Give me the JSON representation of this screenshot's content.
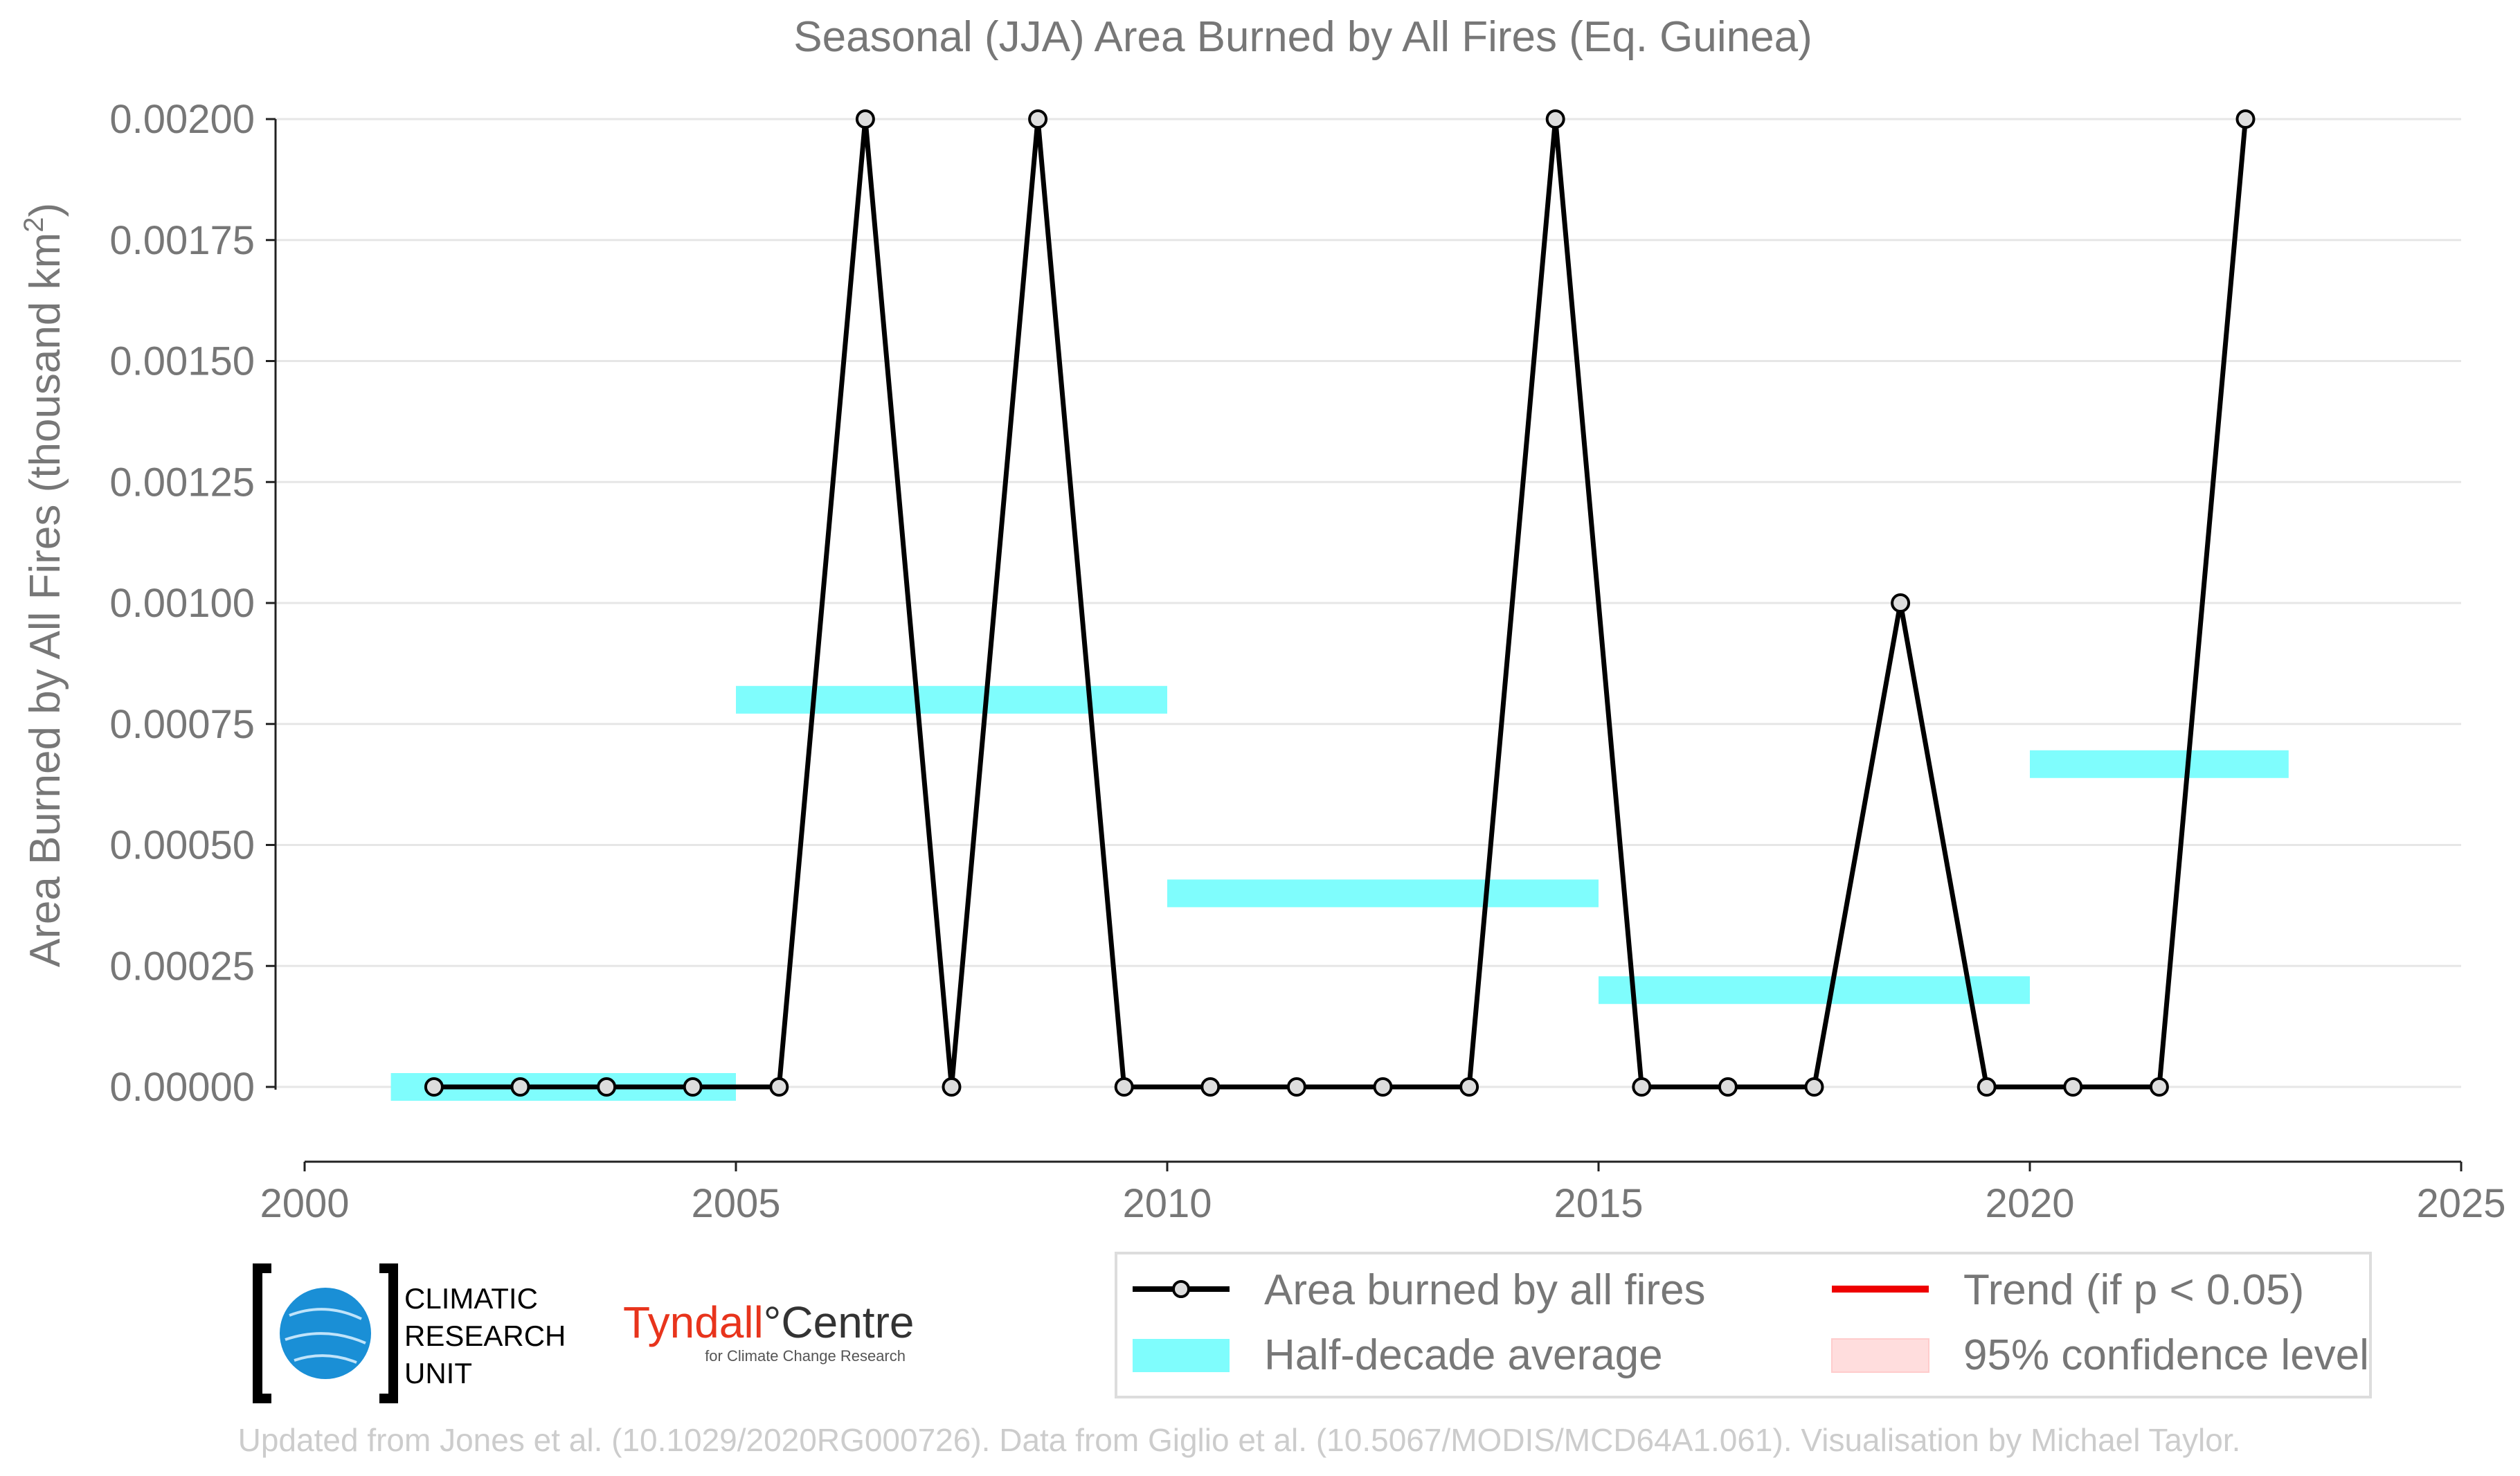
{
  "chart_data": {
    "type": "line",
    "title": "Seasonal (JJA) Area Burned by All Fires (Eq. Guinea)",
    "ylabel": "Area Burned by All Fires (thousand km",
    "ylabel_sup": "2",
    "ylabel_end": ")",
    "xlim": [
      2000,
      2025
    ],
    "ylim": [
      -0.00015,
      0.00205
    ],
    "x_ticks": [
      2000,
      2005,
      2010,
      2015,
      2020,
      2025
    ],
    "x_tick_labels": [
      "2000",
      "2005",
      "2010",
      "2015",
      "2020",
      "2025"
    ],
    "y_ticks": [
      0,
      0.00025,
      0.0005,
      0.00075,
      0.001,
      0.00125,
      0.0015,
      0.00175,
      0.002
    ],
    "y_tick_labels": [
      "0.00000",
      "0.00025",
      "0.00050",
      "0.00075",
      "0.00100",
      "0.00125",
      "0.00150",
      "0.00175",
      "0.00200"
    ],
    "grid": "horizontal",
    "series": [
      {
        "name": "Area burned by all fires",
        "color": "#000000",
        "x": [
          2001.5,
          2002.5,
          2003.5,
          2004.5,
          2005.5,
          2006.5,
          2007.5,
          2008.5,
          2009.5,
          2010.5,
          2011.5,
          2012.5,
          2013.5,
          2014.5,
          2015.5,
          2016.5,
          2017.5,
          2018.5,
          2019.5,
          2020.5,
          2021.5,
          2022.5
        ],
        "values": [
          0,
          0,
          0,
          0,
          0,
          0.002,
          0,
          0.002,
          0,
          0,
          0,
          0,
          0,
          0.002,
          0,
          0,
          0,
          0.001,
          0,
          0,
          0,
          0.002
        ]
      }
    ],
    "half_decade_average": {
      "name": "Half-decade average",
      "color": "#7ffdfd",
      "segments": [
        {
          "x_start": 2001,
          "x_end": 2005,
          "value": 0
        },
        {
          "x_start": 2005,
          "x_end": 2010,
          "value": 0.0008
        },
        {
          "x_start": 2010,
          "x_end": 2015,
          "value": 0.0004
        },
        {
          "x_start": 2015,
          "x_end": 2020,
          "value": 0.0002
        },
        {
          "x_start": 2020,
          "x_end": 2023,
          "value": 0.000667
        }
      ]
    },
    "legend": {
      "placement": "bottom-right",
      "entries": [
        {
          "label": "Area burned by all fires",
          "kind": "line-marker",
          "color": "#000000"
        },
        {
          "label": "Trend (if p < 0.05)",
          "kind": "line",
          "color": "#ee0000"
        },
        {
          "label": "Half-decade average",
          "kind": "band",
          "color": "#7ffdfd"
        },
        {
          "label": "95% confidence level",
          "kind": "band",
          "color": "#ffdddd"
        }
      ]
    }
  },
  "logos": {
    "cru_text": [
      "CLIMATIC",
      "RESEARCH",
      "UNIT"
    ],
    "cru_color": "#1a8fd6",
    "tyndall_name": "Tyndall",
    "tyndall_degree": "°",
    "tyndall_centre": "Centre",
    "tyndall_sub": "for Climate Change Research",
    "tyndall_color": "#e8341c"
  },
  "footer": {
    "credit": "Updated from Jones et al. (10.1029/2020RG000726). Data from Giglio et al. (10.5067/MODIS/MCD64A1.061). Visualisation by Michael Taylor."
  }
}
